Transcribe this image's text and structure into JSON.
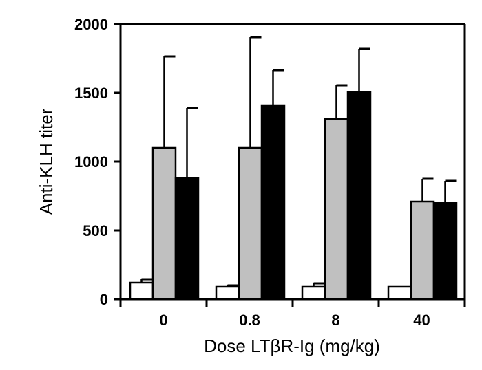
{
  "chart_data": {
    "type": "bar",
    "xlabel": "Dose LTβR-Ig (mg/kg)",
    "ylabel": "Anti-KLH titer",
    "ylim": [
      0,
      2000
    ],
    "yticks": [
      "0",
      "500",
      "1000",
      "1500",
      "2000"
    ],
    "categories": [
      "0",
      "0.8",
      "8",
      "40"
    ],
    "grid": false,
    "legend": "none",
    "series": [
      {
        "values": [
          120,
          90,
          90,
          90
        ],
        "errors": [
          25,
          10,
          25,
          0
        ],
        "color": "#ffffff"
      },
      {
        "values": [
          1100,
          1100,
          1310,
          710
        ],
        "errors": [
          665,
          805,
          245,
          165
        ],
        "color": "#c0c0c0"
      },
      {
        "values": [
          880,
          1410,
          1505,
          700
        ],
        "errors": [
          510,
          255,
          315,
          160
        ],
        "color": "#000000"
      }
    ]
  }
}
